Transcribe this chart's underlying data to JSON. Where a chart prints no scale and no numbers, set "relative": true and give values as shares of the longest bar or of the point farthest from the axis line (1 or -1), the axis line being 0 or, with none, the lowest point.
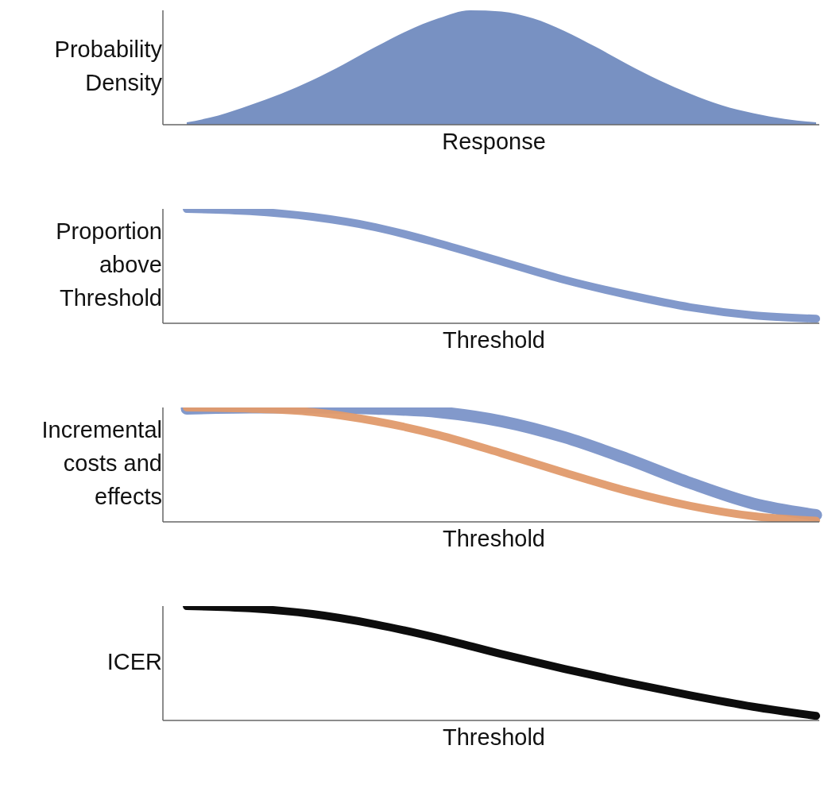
{
  "chart_data": [
    {
      "type": "area",
      "xlabel": "Response",
      "ylabel": "Probability Density",
      "relative": true,
      "categories": [
        null,
        null,
        null,
        null,
        null,
        null,
        null,
        null,
        null,
        null,
        null,
        null,
        null,
        null,
        null,
        null,
        null,
        null,
        null,
        null,
        null
      ],
      "values": [
        0.02,
        0.08,
        0.17,
        0.27,
        0.39,
        0.53,
        0.68,
        0.82,
        0.93,
        1,
        0.99,
        0.93,
        0.82,
        0.68,
        0.53,
        0.39,
        0.27,
        0.17,
        0.1,
        0.05,
        0.02
      ],
      "color": "#7891c2"
    },
    {
      "type": "line",
      "xlabel": "Threshold",
      "ylabel": "Proportion above Threshold",
      "relative": true,
      "categories": [
        null,
        null,
        null,
        null,
        null,
        null,
        null,
        null,
        null,
        null,
        null
      ],
      "series": [
        {
          "color": "#7b93c8",
          "values": [
            1,
            0.98,
            0.93,
            0.84,
            0.7,
            0.54,
            0.38,
            0.25,
            0.14,
            0.07,
            0.04
          ]
        }
      ]
    },
    {
      "type": "line",
      "xlabel": "Threshold",
      "ylabel": "Incremental costs and effects",
      "relative": true,
      "categories": [
        null,
        null,
        null,
        null,
        null,
        null,
        null,
        null,
        null,
        null,
        null
      ],
      "series": [
        {
          "color": "#7b93c8",
          "values": [
            0.99,
            1,
            1,
            0.99,
            0.96,
            0.88,
            0.74,
            0.55,
            0.34,
            0.16,
            0.06
          ]
        },
        {
          "color": "#e09a6c",
          "values": [
            1,
            0.99,
            0.96,
            0.88,
            0.76,
            0.6,
            0.43,
            0.27,
            0.14,
            0.05,
            0.01
          ]
        }
      ]
    },
    {
      "type": "line",
      "xlabel": "Threshold",
      "ylabel": "ICER",
      "relative": true,
      "categories": [
        null,
        null,
        null,
        null,
        null,
        null,
        null,
        null,
        null,
        null,
        null
      ],
      "series": [
        {
          "color": "#000000",
          "values": [
            1,
            0.98,
            0.93,
            0.84,
            0.72,
            0.58,
            0.45,
            0.33,
            0.22,
            0.12,
            0.04
          ]
        }
      ]
    }
  ]
}
